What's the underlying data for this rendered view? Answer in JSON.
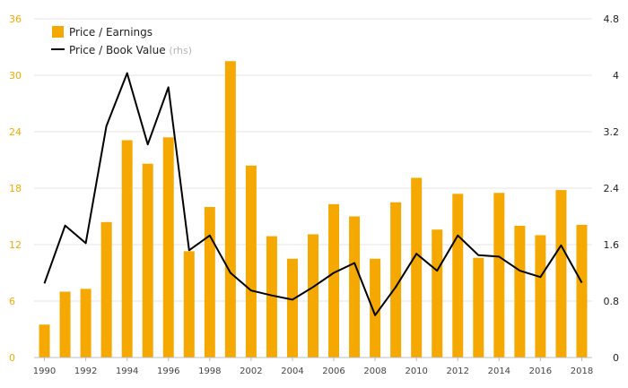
{
  "chart_data": {
    "type": "bar+line",
    "title": "",
    "categories": [
      1990,
      1991,
      1992,
      1993,
      1994,
      1995,
      1996,
      1997,
      1998,
      2000,
      2002,
      2003,
      2004,
      2005,
      2006,
      2007,
      2008,
      2009,
      2010,
      2011,
      2012,
      2013,
      2014,
      2015,
      2016,
      2017,
      2018
    ],
    "x_tick_labels": [
      "1990",
      "1992",
      "1994",
      "1996",
      "1998",
      "2002",
      "2004",
      "2006",
      "2008",
      "2010",
      "2012",
      "2014",
      "2016",
      "2018"
    ],
    "x_tick_at_index": [
      0,
      2,
      4,
      6,
      8,
      10,
      12,
      14,
      16,
      18,
      20,
      22,
      24,
      26
    ],
    "series": [
      {
        "name": "Price / Earnings",
        "type": "bar",
        "axis": "left",
        "color": "#f5a800",
        "values": [
          3.5,
          7.0,
          7.3,
          14.4,
          23.1,
          20.6,
          23.4,
          11.3,
          16.0,
          31.5,
          20.4,
          12.9,
          10.5,
          13.1,
          16.3,
          15.0,
          10.5,
          16.5,
          19.1,
          13.6,
          17.4,
          10.6,
          17.5,
          14.0,
          13.0,
          17.8,
          14.1
        ]
      },
      {
        "name": "Price / Book Value",
        "name_suffix": "(rhs)",
        "type": "line",
        "axis": "right",
        "color": "#000000",
        "values": [
          1.05,
          1.87,
          1.62,
          3.28,
          4.03,
          3.02,
          3.83,
          1.52,
          1.73,
          1.2,
          0.95,
          0.88,
          0.82,
          1.0,
          1.2,
          1.34,
          0.6,
          1.0,
          1.47,
          1.23,
          1.73,
          1.45,
          1.43,
          1.23,
          1.14,
          1.59,
          1.06
        ]
      }
    ],
    "y_left": {
      "range": [
        0,
        36
      ],
      "ticks": [
        "0",
        "6",
        "12",
        "18",
        "24",
        "30",
        "36"
      ],
      "color": "#f5a800"
    },
    "y_right": {
      "range": [
        0,
        4.8
      ],
      "ticks": [
        "0",
        "0.8",
        "1.6",
        "2.4",
        "3.2",
        "4",
        "4.8"
      ],
      "color": "#222222"
    },
    "grid": true,
    "legend_position": "top-left"
  }
}
